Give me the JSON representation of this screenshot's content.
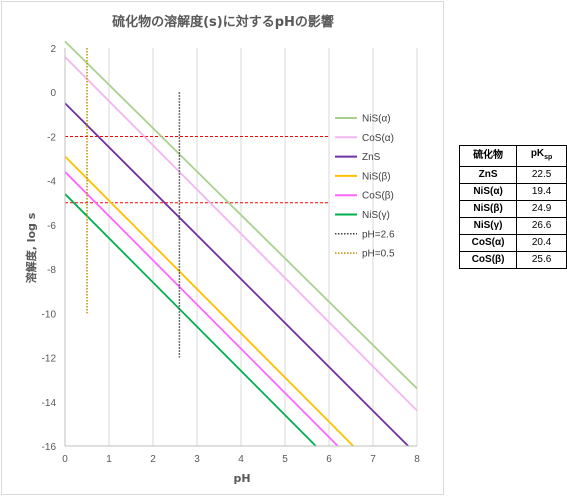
{
  "chart_data": {
    "type": "line",
    "title": "硫化物の溶解度(s)に対するpHの影響",
    "xlabel": "pH",
    "ylabel": "溶解度, log s",
    "xlim": [
      0,
      8
    ],
    "ylim": [
      -16,
      2
    ],
    "xticks": [
      "0",
      "1",
      "2",
      "3",
      "4",
      "5",
      "6",
      "7",
      "8"
    ],
    "yticks": [
      "2",
      "0",
      "-2",
      "-4",
      "-6",
      "-8",
      "-10",
      "-12",
      "-14",
      "-16"
    ],
    "grid": "vertical",
    "legend_position": "right",
    "series": [
      {
        "name": "NiS(α)",
        "color": "#a9d18e",
        "style": "solid",
        "points": [
          [
            0,
            2.3
          ],
          [
            8,
            -13.4
          ]
        ]
      },
      {
        "name": "CoS(α)",
        "color": "#f4b6f0",
        "style": "solid",
        "points": [
          [
            0,
            1.6
          ],
          [
            8,
            -14.4
          ]
        ]
      },
      {
        "name": "ZnS",
        "color": "#7030a0",
        "style": "solid",
        "points": [
          [
            0,
            -0.5
          ],
          [
            7.8,
            -16
          ]
        ]
      },
      {
        "name": "NiS(β)",
        "color": "#ffc000",
        "style": "solid",
        "points": [
          [
            0,
            -2.9
          ],
          [
            6.55,
            -16
          ]
        ]
      },
      {
        "name": "CoS(β)",
        "color": "#ff66ff",
        "style": "solid",
        "points": [
          [
            0,
            -3.6
          ],
          [
            6.2,
            -16
          ]
        ]
      },
      {
        "name": "NiS(γ)",
        "color": "#00b050",
        "style": "solid",
        "points": [
          [
            0,
            -4.6
          ],
          [
            5.7,
            -16
          ]
        ]
      },
      {
        "name": "pH=2.6",
        "color": "#404040",
        "style": "dotted",
        "points": [
          [
            2.6,
            0
          ],
          [
            2.6,
            -12
          ]
        ]
      },
      {
        "name": "pH=0.5",
        "color": "#bf9000",
        "style": "dotted",
        "points": [
          [
            0.5,
            2
          ],
          [
            0.5,
            -10
          ]
        ]
      }
    ],
    "reference_lines": [
      {
        "y": -2,
        "color": "#ff0000",
        "style": "dashed",
        "x_range": [
          0,
          6
        ]
      },
      {
        "y": -5,
        "color": "#ff0000",
        "style": "dashed",
        "x_range": [
          0,
          6
        ]
      }
    ]
  },
  "table": {
    "headers": [
      "硫化物",
      "pK",
      "sp"
    ],
    "rows": [
      {
        "name": "ZnS",
        "value": "22.5"
      },
      {
        "name": "NiS(α)",
        "value": "19.4"
      },
      {
        "name": "NiS(β)",
        "value": "24.9"
      },
      {
        "name": "NiS(γ)",
        "value": "26.6"
      },
      {
        "name": "CoS(α)",
        "value": "20.4"
      },
      {
        "name": "CoS(β)",
        "value": "25.6"
      }
    ]
  }
}
